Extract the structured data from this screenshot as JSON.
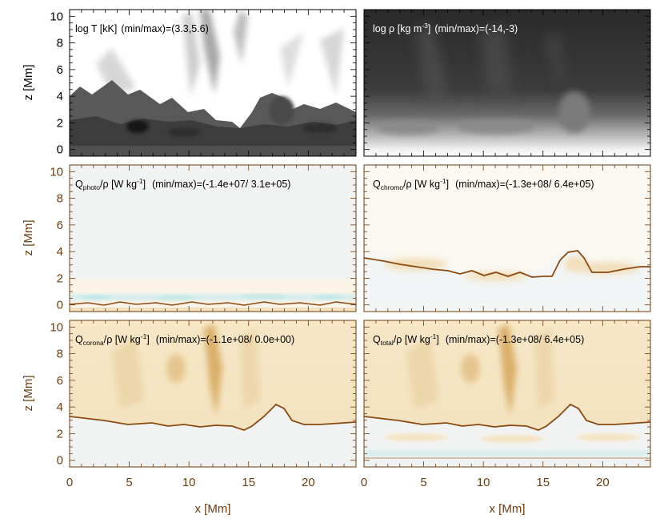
{
  "colors": {
    "top_row_axis": "#000000",
    "lower_axis": "#6b3c12",
    "heating_light": "#f6e6c6",
    "heating_dark": "#8a4a12",
    "cooling_tint": "#d6eeee",
    "neutral_bg": "#f1f3f2"
  },
  "chart_data": [
    {
      "type": "heatmap",
      "panel": "temperature",
      "title": {
        "main": "log T [kK]",
        "range_label": "(min/max)",
        "range_value": "=(3.3,5.6)"
      },
      "colormap": "grayscale",
      "xlim": [
        0,
        24
      ],
      "ylim": [
        -0.5,
        10.5
      ],
      "yticks": [
        0,
        2,
        4,
        6,
        8,
        10
      ],
      "ylabel": "z [Mm]",
      "xlabel": ""
    },
    {
      "type": "heatmap",
      "panel": "density",
      "title": {
        "main": "log ρ [kg m",
        "exp": "-3",
        "rest": "]",
        "range_label": "(min/max)",
        "range_value": "=(-14,-3)"
      },
      "colormap": "grayscale",
      "xlim": [
        0,
        24
      ],
      "ylim": [
        -0.5,
        10.5
      ],
      "xlabel": "",
      "ylabel": ""
    },
    {
      "type": "heatmap",
      "panel": "q_photo",
      "title": {
        "q": "Q",
        "sub": "photo",
        "mid": "/ρ [W kg",
        "exp": "-1",
        "rest": "]",
        "range_label": "(min/max)",
        "range_value": "=(-1.4e+07/ 3.1e+05)"
      },
      "colormap": "brown-white-cyan",
      "xlim": [
        0,
        24
      ],
      "ylim": [
        -0.5,
        10.5
      ],
      "yticks": [
        0,
        2,
        4,
        6,
        8,
        10
      ],
      "ylabel": "z [Mm]",
      "xlabel": ""
    },
    {
      "type": "heatmap",
      "panel": "q_chromo",
      "title": {
        "q": "Q",
        "sub": "chromo",
        "mid": "/ρ [W kg",
        "exp": "-1",
        "rest": "]",
        "range_label": "(min/max)",
        "range_value": "=(-1.3e+08/ 6.4e+05)"
      },
      "colormap": "brown-white-cyan",
      "xlim": [
        0,
        24
      ],
      "ylim": [
        -0.5,
        10.5
      ],
      "xlabel": "",
      "ylabel": ""
    },
    {
      "type": "heatmap",
      "panel": "q_corona",
      "title": {
        "q": "Q",
        "sub": "corona",
        "mid": "/ρ [W kg",
        "exp": "-1",
        "rest": "]",
        "range_label": "(min/max)",
        "range_value": "=(-1.1e+08/ 0.0e+00)"
      },
      "colormap": "brown-white-cyan",
      "xlim": [
        0,
        24
      ],
      "ylim": [
        -0.5,
        10.5
      ],
      "xticks": [
        0,
        5,
        10,
        15,
        20
      ],
      "yticks": [
        0,
        2,
        4,
        6,
        8,
        10
      ],
      "xlabel": "x [Mm]",
      "ylabel": "z [Mm]"
    },
    {
      "type": "heatmap",
      "panel": "q_total",
      "title": {
        "q": "Q",
        "sub": "total",
        "mid": "/ρ [W kg",
        "exp": "-1",
        "rest": "]",
        "range_label": "(min/max)",
        "range_value": "=(-1.3e+08/ 6.4e+05)"
      },
      "colormap": "brown-white-cyan",
      "xlim": [
        0,
        24
      ],
      "ylim": [
        -0.5,
        10.5
      ],
      "xticks": [
        0,
        5,
        10,
        15,
        20
      ],
      "xlabel": "x [Mm]",
      "ylabel": ""
    }
  ]
}
